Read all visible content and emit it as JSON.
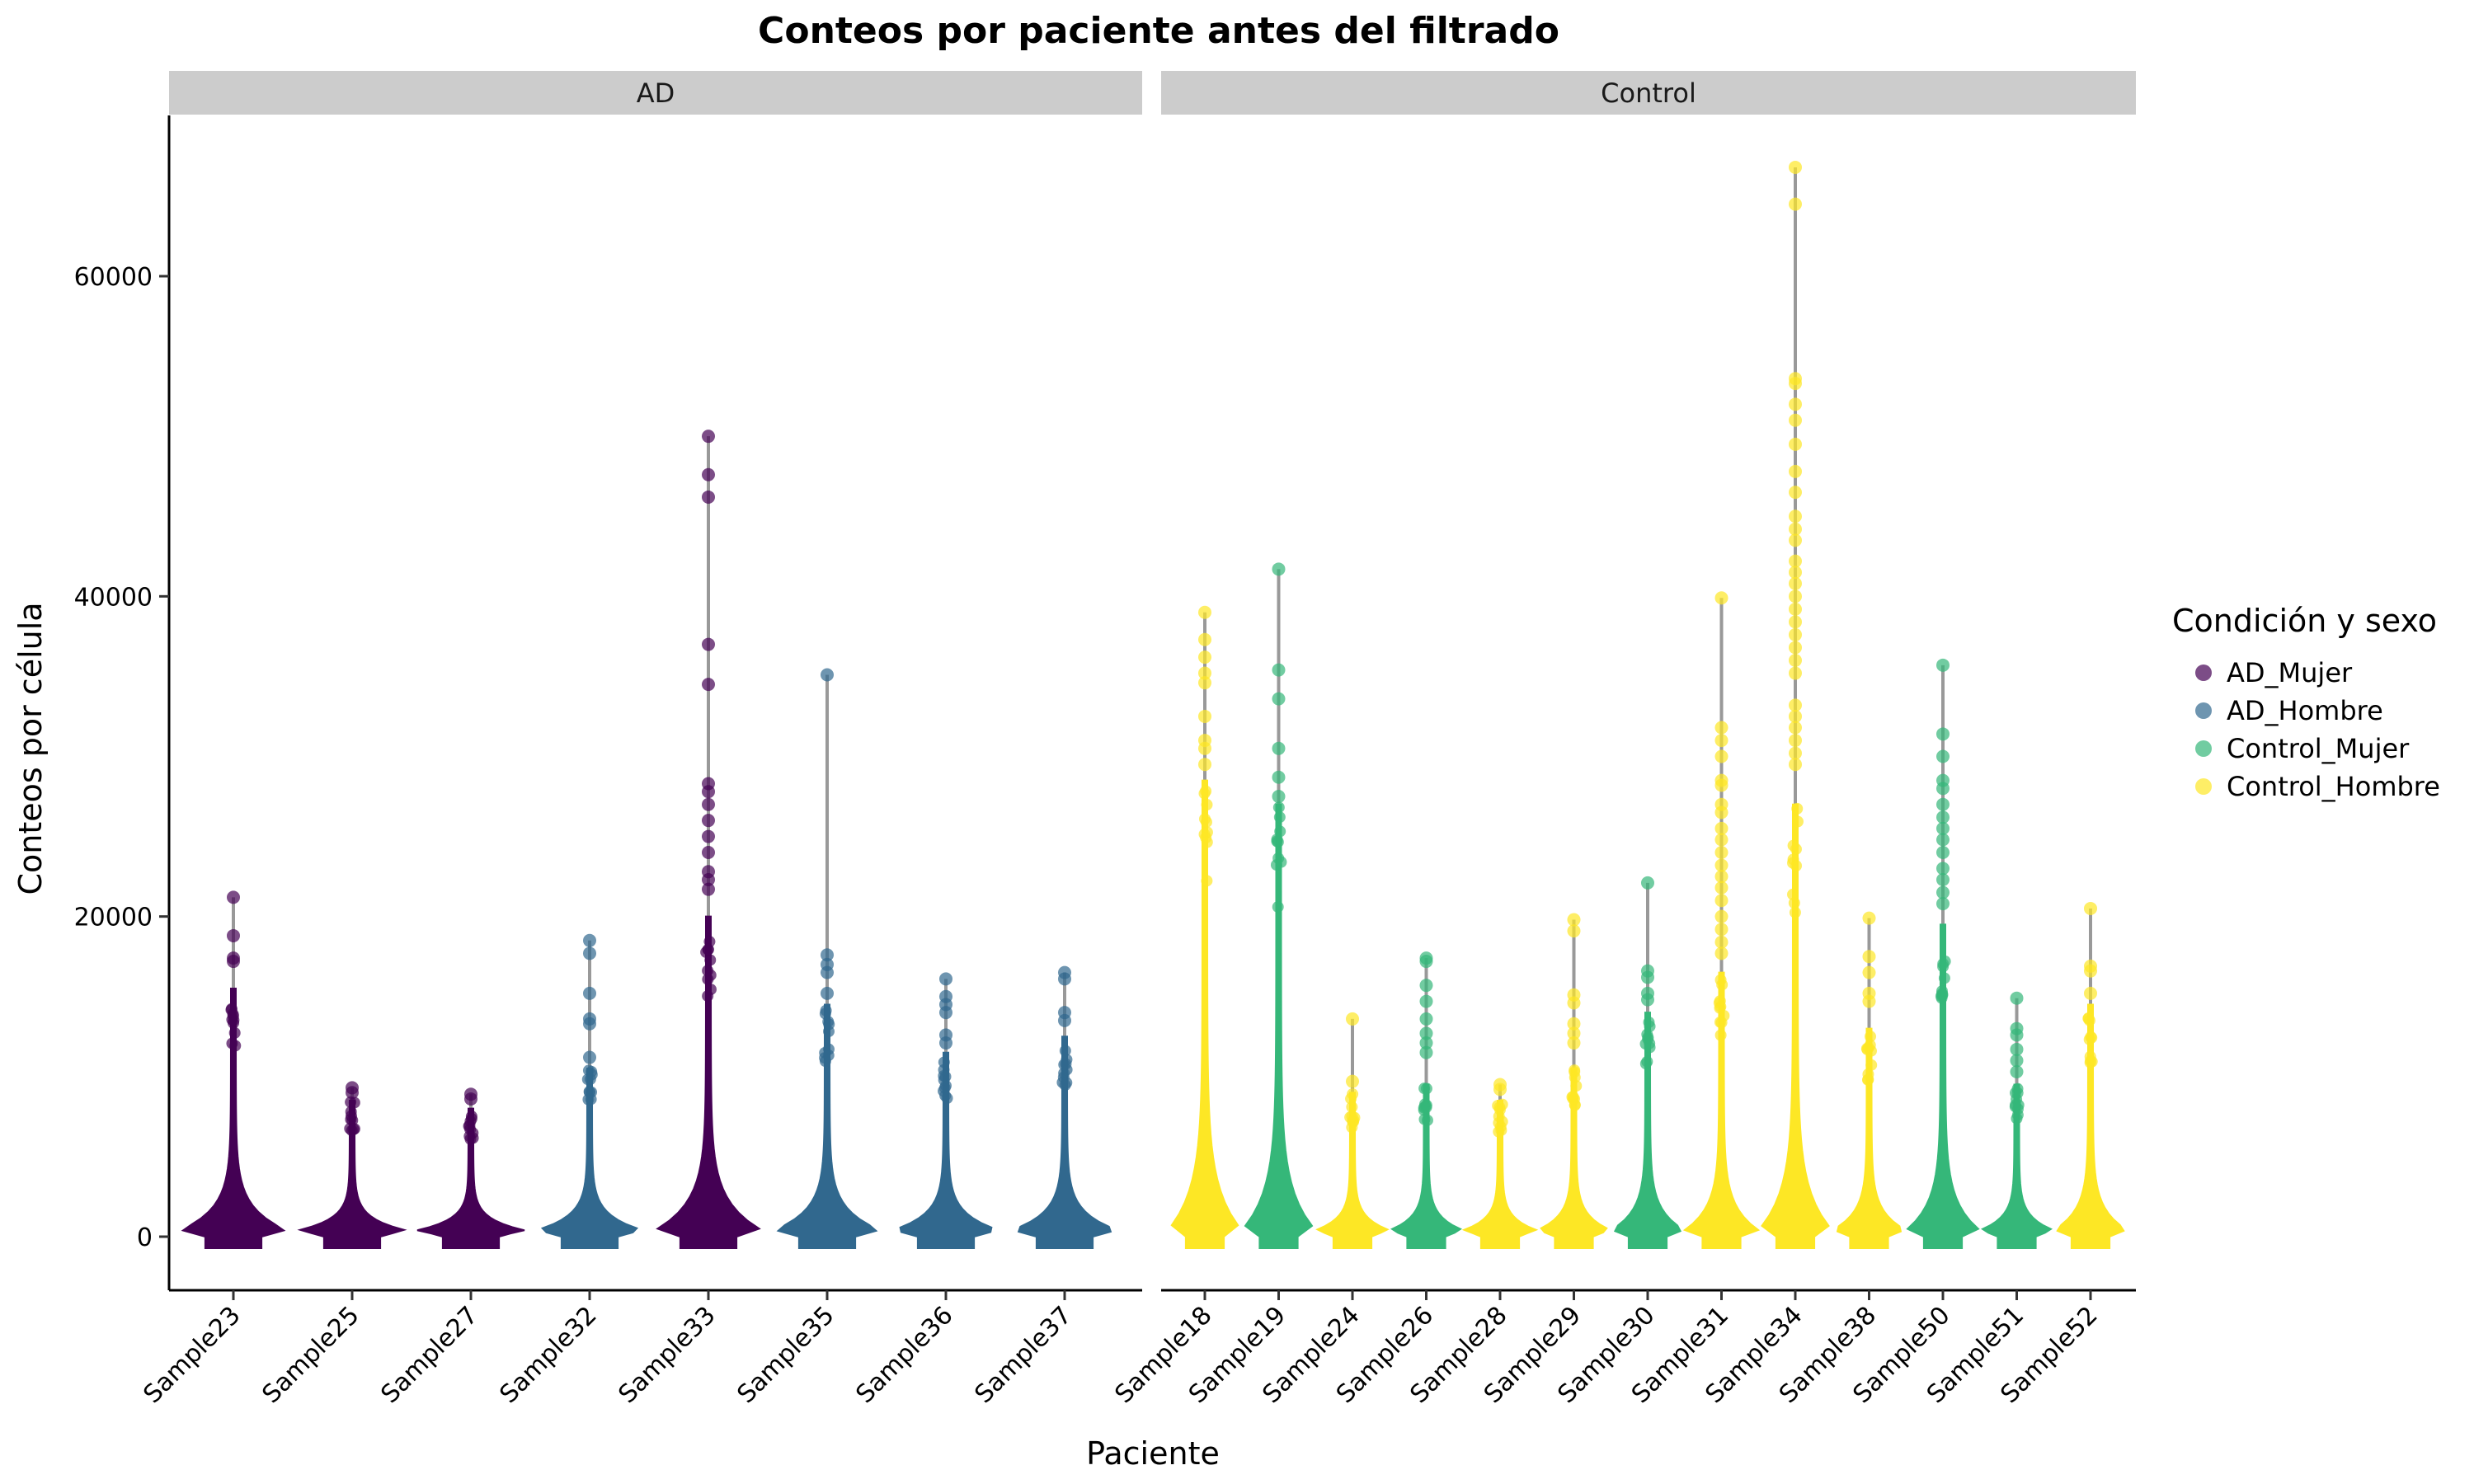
{
  "chart_data": {
    "type": "violin",
    "title": "Conteos por paciente antes del filtrado",
    "xlabel": "Paciente",
    "ylabel": "Conteos por célula",
    "ylim": [
      -3300,
      70000
    ],
    "yticks": [
      0,
      20000,
      40000,
      60000
    ],
    "grid": false,
    "legend": {
      "title": "Condición y sexo",
      "placement": "right",
      "entries": [
        {
          "name": "AD_Mujer",
          "color": "#440154"
        },
        {
          "name": "AD_Hombre",
          "color": "#31688e"
        },
        {
          "name": "Control_Mujer",
          "color": "#35b779"
        },
        {
          "name": "Control_Hombre",
          "color": "#fde725"
        }
      ]
    },
    "facets": [
      {
        "label": "AD",
        "samples": [
          {
            "name": "Sample23",
            "group": "AD_Mujer",
            "max": 21200,
            "dense_top": 15500,
            "tail": [
              18800,
              17400,
              17200
            ]
          },
          {
            "name": "Sample25",
            "group": "AD_Mujer",
            "max": 9300,
            "dense_top": 8500,
            "tail": [
              9000
            ]
          },
          {
            "name": "Sample27",
            "group": "AD_Mujer",
            "max": 8900,
            "dense_top": 8000,
            "tail": [
              8600
            ]
          },
          {
            "name": "Sample32",
            "group": "AD_Hombre",
            "max": 18500,
            "dense_top": 10500,
            "tail": [
              17700,
              15200,
              13600,
              13300,
              11200
            ]
          },
          {
            "name": "Sample33",
            "group": "AD_Mujer",
            "max": 50000,
            "dense_top": 20000,
            "tail": [
              47600,
              46200,
              37000,
              34500,
              28300,
              27800,
              27000,
              26000,
              25000,
              24000,
              22800,
              22300,
              21700
            ]
          },
          {
            "name": "Sample35",
            "group": "AD_Hombre",
            "max": 35100,
            "dense_top": 14500,
            "tail": [
              17600,
              17000,
              16500,
              15200
            ]
          },
          {
            "name": "Sample36",
            "group": "AD_Hombre",
            "max": 16100,
            "dense_top": 11500,
            "tail": [
              15000,
              14500,
              14000,
              12600,
              12100
            ]
          },
          {
            "name": "Sample37",
            "group": "AD_Hombre",
            "max": 16500,
            "dense_top": 12500,
            "tail": [
              16100,
              14000,
              13500
            ]
          }
        ]
      },
      {
        "label": "Control",
        "samples": [
          {
            "name": "Sample18",
            "group": "Control_Hombre",
            "max": 39000,
            "dense_top": 28500,
            "tail": [
              37300,
              36200,
              35200,
              34600,
              32500,
              31000,
              30500,
              29500
            ]
          },
          {
            "name": "Sample19",
            "group": "Control_Mujer",
            "max": 41700,
            "dense_top": 27000,
            "tail": [
              35400,
              33600,
              30500,
              28700,
              27500
            ]
          },
          {
            "name": "Sample24",
            "group": "Control_Hombre",
            "max": 13600,
            "dense_top": 9000,
            "tail": [
              9700
            ]
          },
          {
            "name": "Sample26",
            "group": "Control_Mujer",
            "max": 17400,
            "dense_top": 9500,
            "tail": [
              17200,
              15700,
              14700,
              13600,
              12700,
              12100,
              11500
            ]
          },
          {
            "name": "Sample28",
            "group": "Control_Hombre",
            "max": 9500,
            "dense_top": 8500,
            "tail": [
              9200
            ]
          },
          {
            "name": "Sample29",
            "group": "Control_Hombre",
            "max": 19800,
            "dense_top": 10500,
            "tail": [
              19100,
              15100,
              14600,
              13300,
              12700,
              12100
            ]
          },
          {
            "name": "Sample30",
            "group": "Control_Mujer",
            "max": 22100,
            "dense_top": 14000,
            "tail": [
              16600,
              16200,
              15200,
              14800
            ]
          },
          {
            "name": "Sample31",
            "group": "Control_Hombre",
            "max": 39900,
            "dense_top": 16500,
            "tail": [
              31800,
              31000,
              30000,
              28500,
              28200,
              27000,
              26500,
              25500,
              24800,
              24000,
              23200,
              22500,
              21800,
              21000,
              20000,
              19200,
              18400,
              17700
            ]
          },
          {
            "name": "Sample34",
            "group": "Control_Hombre",
            "max": 66800,
            "dense_top": 27000,
            "tail": [
              64500,
              53600,
              53300,
              52000,
              51000,
              49500,
              47800,
              46500,
              45000,
              44200,
              43500,
              42200,
              41500,
              40800,
              40000,
              39200,
              38400,
              37600,
              36800,
              36000,
              35200,
              33200,
              32500,
              31800,
              31000,
              30200,
              29500
            ]
          },
          {
            "name": "Sample38",
            "group": "Control_Hombre",
            "max": 19900,
            "dense_top": 13000,
            "tail": [
              17500,
              16500,
              15200,
              14700
            ]
          },
          {
            "name": "Sample50",
            "group": "Control_Mujer",
            "max": 35700,
            "dense_top": 19500,
            "tail": [
              31400,
              30000,
              28500,
              28000,
              27000,
              26200,
              25500,
              24800,
              24000,
              23000,
              22300,
              21500,
              20800
            ]
          },
          {
            "name": "Sample51",
            "group": "Control_Mujer",
            "max": 14900,
            "dense_top": 9500,
            "tail": [
              13000,
              12600,
              11700,
              11000,
              10300
            ]
          },
          {
            "name": "Sample52",
            "group": "Control_Hombre",
            "max": 20500,
            "dense_top": 14500,
            "tail": [
              16900,
              16600,
              15200
            ]
          }
        ]
      }
    ]
  }
}
